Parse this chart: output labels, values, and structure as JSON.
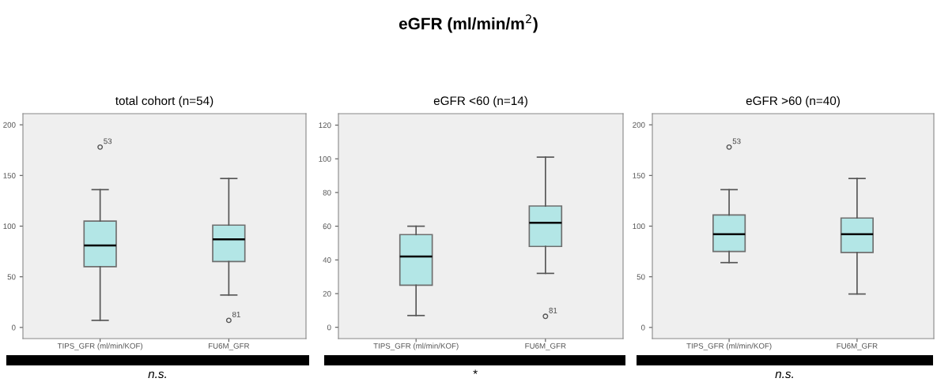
{
  "chart_data": [
    {
      "type": "box",
      "title": "total cohort (n=54)",
      "categories": [
        "TIPS_GFR (ml/min/KOF)",
        "FU6M_GFR"
      ],
      "color": "#b3e6e6",
      "ylim": [
        -11,
        211
      ],
      "yticks": [
        0,
        50,
        100,
        150,
        200
      ],
      "grid": false,
      "boxes": [
        {
          "low": 7,
          "q1": 60,
          "median": 81,
          "q3": 105,
          "high": 136,
          "outliers": [
            178
          ]
        },
        {
          "low": 32,
          "q1": 65,
          "median": 87,
          "q3": 101,
          "high": 147,
          "outliers": [
            7
          ]
        }
      ],
      "annotations": [
        "eGFR (ml/min/m$^{2}$)",
        "n.s.",
        "53",
        "81"
      ]
    },
    {
      "type": "box",
      "title": "eGFR <60 (n=14)",
      "categories": [
        "TIPS_GFR (ml/min/KOF)",
        "FU6M_GFR"
      ],
      "color": "#b3e6e6",
      "ylim": [
        -6.7,
        126.8
      ],
      "yticks": [
        0,
        20,
        40,
        60,
        80,
        100,
        120
      ],
      "grid": false,
      "boxes": [
        {
          "low": 7,
          "q1": 25,
          "median": 42,
          "q3": 55,
          "high": 60
        },
        {
          "low": 32,
          "q1": 48,
          "median": 62,
          "q3": 72,
          "high": 101,
          "outliers": [
            6.5
          ]
        }
      ],
      "annotations": [
        "*",
        "81"
      ]
    },
    {
      "type": "box",
      "title": "eGFR >60 (n=40)",
      "categories": [
        "TIPS_GFR (ml/min/KOF)",
        "FU6M_GFR"
      ],
      "color": "#b3e6e6",
      "ylim": [
        -11,
        211
      ],
      "yticks": [
        0,
        50,
        100,
        150,
        200
      ],
      "grid": false,
      "boxes": [
        {
          "low": 64,
          "q1": 75,
          "median": 92,
          "q3": 111,
          "high": 136,
          "outliers": [
            178
          ]
        },
        {
          "low": 33,
          "q1": 74,
          "median": 92,
          "q3": 108,
          "high": 147
        }
      ],
      "annotations": [
        "n.s.",
        "53"
      ]
    }
  ]
}
